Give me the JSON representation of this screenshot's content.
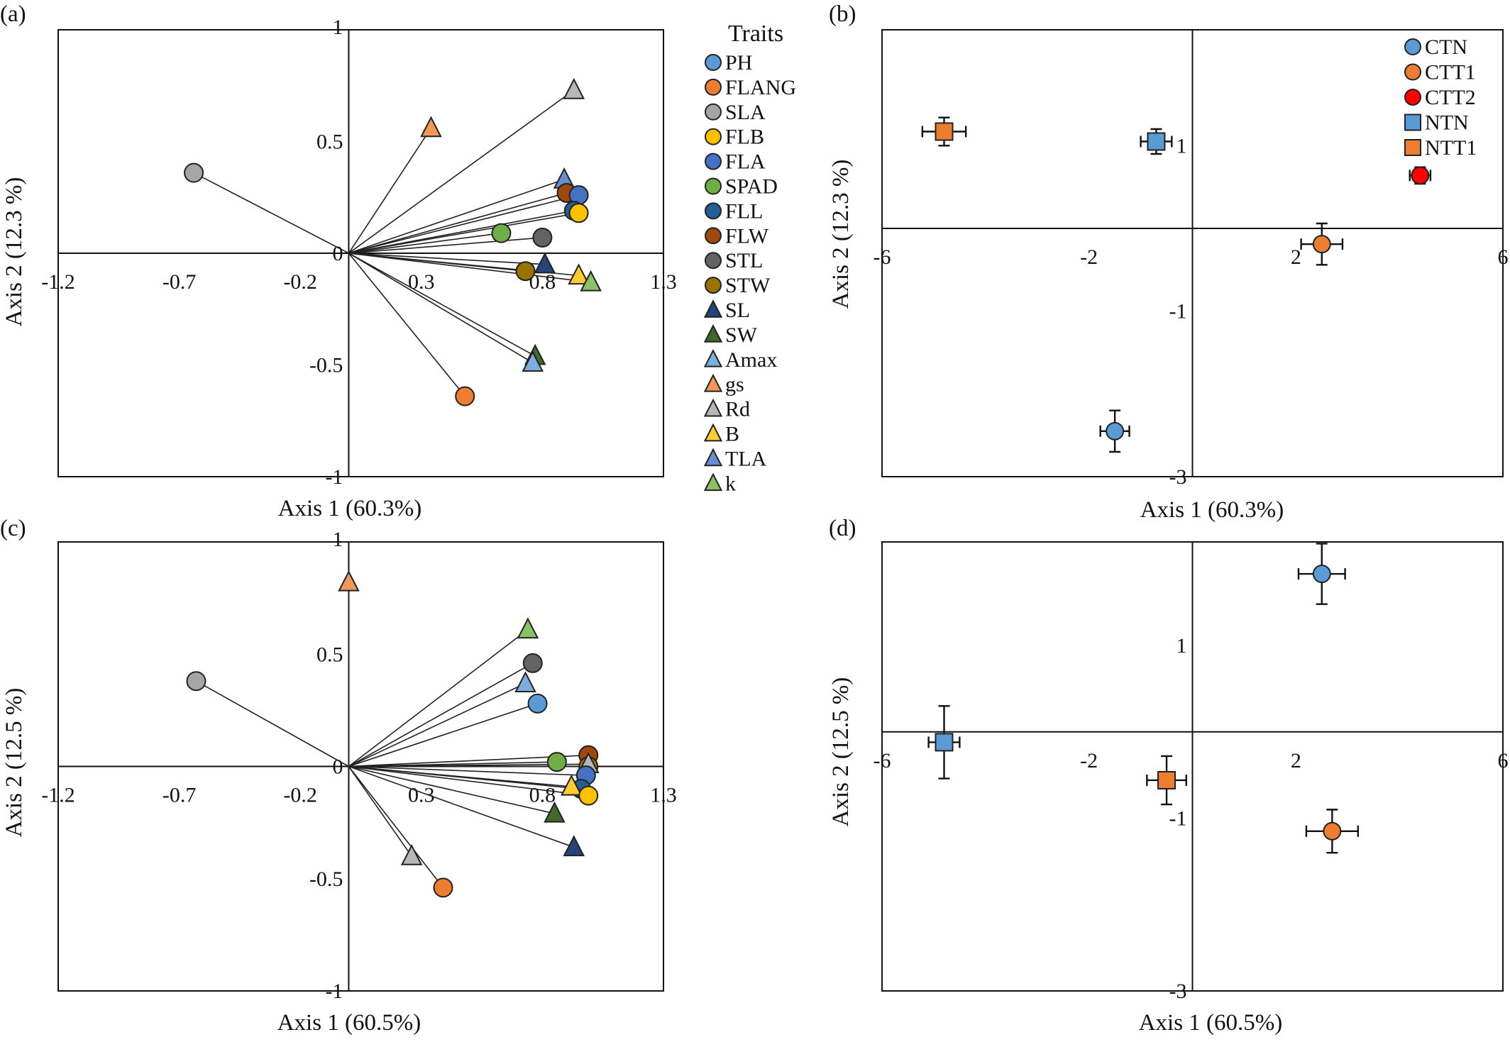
{
  "colors": {
    "PH": "#5b9bd5",
    "FLANG": "#ed7d31",
    "SLA": "#a5a5a5",
    "FLB": "#ffc000",
    "FLA": "#4472c4",
    "SPAD": "#70ad47",
    "FLL": "#255e91",
    "FLW": "#9e480e",
    "STL": "#636363",
    "STW": "#997300",
    "SL": "#264478",
    "SW": "#43682b",
    "Amax": "#7cafdd",
    "gs": "#f1975a",
    "Rd": "#b7b7b7",
    "B": "#ffcd33",
    "TLA": "#698ed0",
    "k": "#8cc168",
    "CTN": "#5b9bd5",
    "CTT1": "#ed7d31",
    "CTT2": "#ff0000",
    "NTN": "#5b9bd5",
    "NTT1": "#ed7d31"
  },
  "trait_legend": {
    "title": "Traits",
    "items": [
      {
        "key": "PH",
        "label": "PH",
        "shape": "circle"
      },
      {
        "key": "FLANG",
        "label": "FLANG",
        "shape": "circle"
      },
      {
        "key": "SLA",
        "label": "SLA",
        "shape": "circle"
      },
      {
        "key": "FLB",
        "label": "FLB",
        "shape": "circle"
      },
      {
        "key": "FLA",
        "label": "FLA",
        "shape": "circle"
      },
      {
        "key": "SPAD",
        "label": "SPAD",
        "shape": "circle"
      },
      {
        "key": "FLL",
        "label": "FLL",
        "shape": "circle"
      },
      {
        "key": "FLW",
        "label": "FLW",
        "shape": "circle"
      },
      {
        "key": "STL",
        "label": "STL",
        "shape": "circle"
      },
      {
        "key": "STW",
        "label": "STW",
        "shape": "circle"
      },
      {
        "key": "SL",
        "label": "SL",
        "shape": "triangle"
      },
      {
        "key": "SW",
        "label": "SW",
        "shape": "triangle"
      },
      {
        "key": "Amax",
        "label": "Amax",
        "shape": "triangle"
      },
      {
        "key": "gs",
        "label": "gs",
        "shape": "triangle"
      },
      {
        "key": "Rd",
        "label": "Rd",
        "shape": "triangle"
      },
      {
        "key": "B",
        "label": "B",
        "shape": "triangle"
      },
      {
        "key": "TLA",
        "label": "TLA",
        "shape": "triangle"
      },
      {
        "key": "k",
        "label": "k",
        "shape": "triangle"
      }
    ]
  },
  "treatment_legend": {
    "items": [
      {
        "key": "CTN",
        "label": "CTN",
        "shape": "circle"
      },
      {
        "key": "CTT1",
        "label": "CTT1",
        "shape": "circle"
      },
      {
        "key": "CTT2",
        "label": "CTT2",
        "shape": "circle"
      },
      {
        "key": "NTN",
        "label": "NTN",
        "shape": "square"
      },
      {
        "key": "NTT1",
        "label": "NTT1",
        "shape": "square"
      }
    ]
  },
  "chart_data": [
    {
      "panel": "(a)",
      "type": "scatter",
      "subtype": "pca-loadings-biplot",
      "xlabel": "Axis 1 (60.3%)",
      "ylabel": "Axis 2 (12.3 %)",
      "xlim": [
        -1.2,
        1.3
      ],
      "ylim": [
        -1,
        1
      ],
      "xticks": [
        "-1.2",
        "-0.7",
        "-0.2",
        "0.3",
        "0.8",
        "1.3"
      ],
      "yticks": [
        "1",
        "0.5",
        "0",
        "-0.5",
        "-1"
      ],
      "origin_vectors": true,
      "points": [
        {
          "trait": "gs",
          "x": 0.34,
          "y": 0.56
        },
        {
          "trait": "Rd",
          "x": 0.93,
          "y": 0.73
        },
        {
          "trait": "SLA",
          "x": -0.64,
          "y": 0.36
        },
        {
          "trait": "TLA",
          "x": 0.89,
          "y": 0.33
        },
        {
          "trait": "FLW",
          "x": 0.9,
          "y": 0.27
        },
        {
          "trait": "FLA",
          "x": 0.95,
          "y": 0.26
        },
        {
          "trait": "FLL",
          "x": 0.93,
          "y": 0.19
        },
        {
          "trait": "FLB",
          "x": 0.95,
          "y": 0.18
        },
        {
          "trait": "SPAD",
          "x": 0.63,
          "y": 0.09
        },
        {
          "trait": "STL",
          "x": 0.8,
          "y": 0.07
        },
        {
          "trait": "SL",
          "x": 0.81,
          "y": -0.05
        },
        {
          "trait": "STW",
          "x": 0.73,
          "y": -0.08
        },
        {
          "trait": "B",
          "x": 0.95,
          "y": -0.1
        },
        {
          "trait": "k",
          "x": 1.0,
          "y": -0.13
        },
        {
          "trait": "SW",
          "x": 0.77,
          "y": -0.46
        },
        {
          "trait": "Amax",
          "x": 0.76,
          "y": -0.49
        },
        {
          "trait": "FLANG",
          "x": 0.48,
          "y": -0.64
        }
      ]
    },
    {
      "panel": "(b)",
      "type": "scatter",
      "subtype": "pca-scores-with-error-bars",
      "xlabel": "Axis 1 (60.3%)",
      "ylabel": "Axis 2 (12.3 %)",
      "xlim": [
        -6,
        6
      ],
      "ylim": [
        -3,
        2.4
      ],
      "xticks": [
        "-6",
        "-2",
        "2",
        "6"
      ],
      "yticks": [
        "1",
        "-1",
        "-3"
      ],
      "points": [
        {
          "group": "NTT1",
          "x": -4.8,
          "y": 1.17,
          "xerr": 0.42,
          "yerr": 0.17
        },
        {
          "group": "NTN",
          "x": -0.7,
          "y": 1.05,
          "xerr": 0.3,
          "yerr": 0.15
        },
        {
          "group": "CTT2",
          "x": 4.4,
          "y": 0.64,
          "xerr": 0.2,
          "yerr": 0.1
        },
        {
          "group": "CTT1",
          "x": 2.5,
          "y": -0.19,
          "xerr": 0.4,
          "yerr": 0.25
        },
        {
          "group": "CTN",
          "x": -1.5,
          "y": -2.45,
          "xerr": 0.28,
          "yerr": 0.25
        }
      ]
    },
    {
      "panel": "(c)",
      "type": "scatter",
      "subtype": "pca-loadings-biplot",
      "xlabel": "Axis 1 (60.5%)",
      "ylabel": "Axis 2 (12.5 %)",
      "xlim": [
        -1.2,
        1.3
      ],
      "ylim": [
        -1,
        1
      ],
      "xticks": [
        "-1.2",
        "-0.7",
        "-0.2",
        "0.3",
        "0.8",
        "1.3"
      ],
      "yticks": [
        "1",
        "0.5",
        "0",
        "-0.5",
        "-1"
      ],
      "origin_vectors": true,
      "points": [
        {
          "trait": "gs",
          "x": 0.0,
          "y": 0.82
        },
        {
          "trait": "SLA",
          "x": -0.63,
          "y": 0.38
        },
        {
          "trait": "k",
          "x": 0.74,
          "y": 0.61
        },
        {
          "trait": "STL",
          "x": 0.76,
          "y": 0.46
        },
        {
          "trait": "Amax",
          "x": 0.73,
          "y": 0.37
        },
        {
          "trait": "PH",
          "x": 0.78,
          "y": 0.28
        },
        {
          "trait": "FLW",
          "x": 0.99,
          "y": 0.05
        },
        {
          "trait": "SPAD",
          "x": 0.86,
          "y": 0.02
        },
        {
          "trait": "STW",
          "x": 0.99,
          "y": 0.0
        },
        {
          "trait": "Rd",
          "x": 0.99,
          "y": 0.01
        },
        {
          "trait": "FLA",
          "x": 0.98,
          "y": -0.04
        },
        {
          "trait": "FLL",
          "x": 0.96,
          "y": -0.1
        },
        {
          "trait": "B",
          "x": 0.92,
          "y": -0.09
        },
        {
          "trait": "FLB",
          "x": 0.99,
          "y": -0.13
        },
        {
          "trait": "SW",
          "x": 0.85,
          "y": -0.21
        },
        {
          "trait": "SL",
          "x": 0.93,
          "y": -0.36
        },
        {
          "trait": "Rd",
          "x": 0.26,
          "y": -0.4
        },
        {
          "trait": "FLANG",
          "x": 0.39,
          "y": -0.54
        }
      ]
    },
    {
      "panel": "(d)",
      "type": "scatter",
      "subtype": "pca-scores-with-error-bars",
      "xlabel": "Axis 1 (60.5%)",
      "ylabel": "Axis 2 (12.5 %)",
      "xlim": [
        -6,
        6
      ],
      "ylim": [
        -3,
        2.2
      ],
      "xticks": [
        "-6",
        "-2",
        "2",
        "6"
      ],
      "yticks": [
        "1",
        "-1",
        "-3"
      ],
      "points": [
        {
          "group": "CTN",
          "x": 2.5,
          "y": 1.83,
          "xerr": 0.45,
          "yerr": 0.35
        },
        {
          "group": "NTN",
          "x": -4.8,
          "y": -0.12,
          "xerr": 0.3,
          "yerr": 0.42
        },
        {
          "group": "NTT1",
          "x": -0.5,
          "y": -0.56,
          "xerr": 0.38,
          "yerr": 0.28
        },
        {
          "group": "CTT1",
          "x": 2.7,
          "y": -1.15,
          "xerr": 0.5,
          "yerr": 0.25
        }
      ]
    }
  ]
}
